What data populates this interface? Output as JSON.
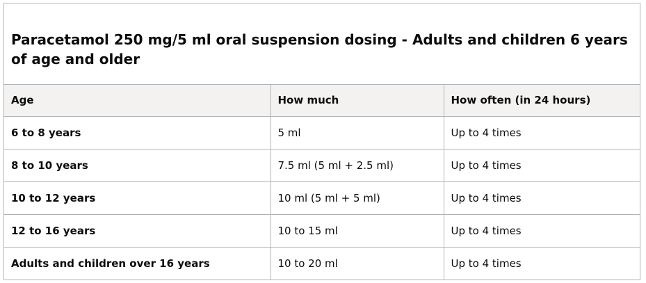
{
  "table": {
    "caption": "Paracetamol 250 mg/5 ml oral suspension dosing - Adults and children 6 years of age and older",
    "headers": [
      "Age",
      "How much",
      "How often (in 24 hours)"
    ],
    "rows": [
      [
        "6 to 8 years",
        "5 ml",
        "Up to 4 times"
      ],
      [
        "8 to 10 years",
        "7.5 ml (5 ml + 2.5 ml)",
        "Up to 4 times"
      ],
      [
        "10 to 12 years",
        "10 ml (5 ml + 5 ml)",
        "Up to 4 times"
      ],
      [
        "12 to 16 years",
        "10 to 15 ml",
        "Up to 4 times"
      ],
      [
        "Adults and children over 16 years",
        "10 to 20 ml",
        "Up to 4 times"
      ]
    ]
  }
}
